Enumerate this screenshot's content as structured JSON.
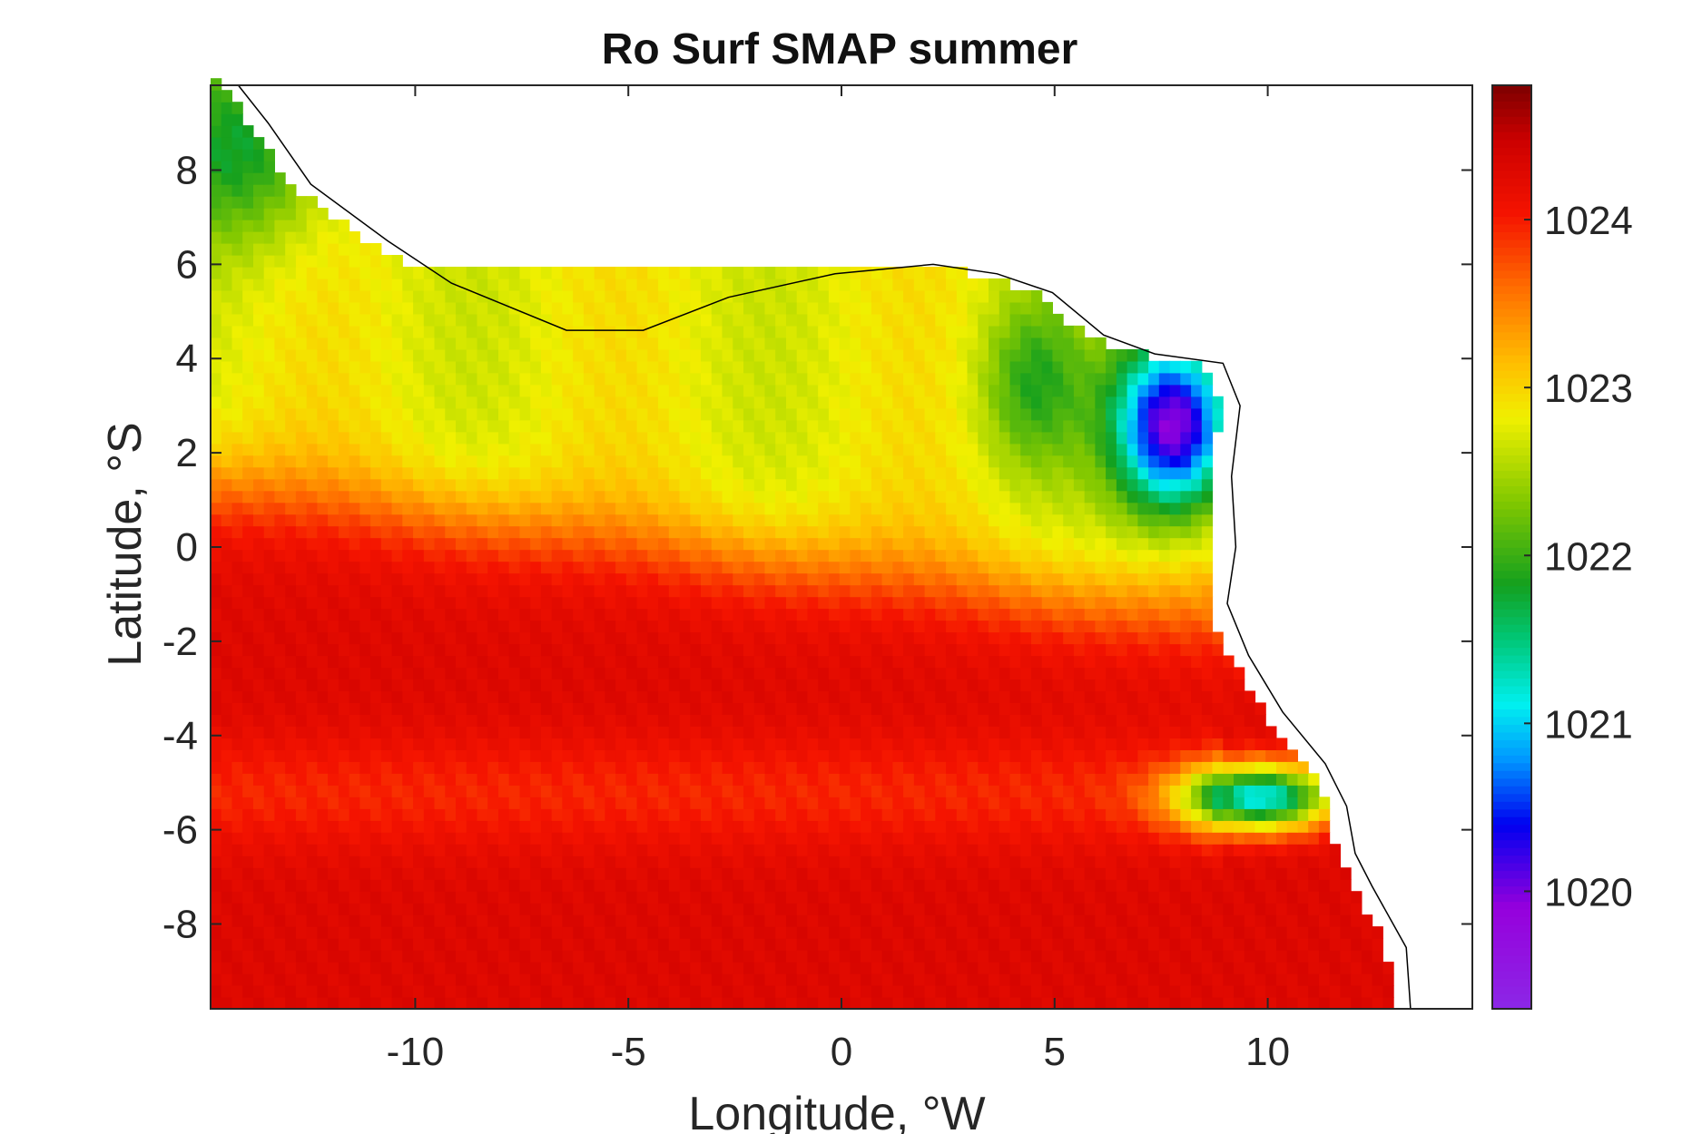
{
  "chart_data": {
    "type": "heatmap",
    "title": "Ro Surf SMAP summer",
    "xlabel": "Longitude, °W",
    "ylabel": "Latitude, °S",
    "xlim": [
      -14.8,
      14.8
    ],
    "ylim": [
      -9.8,
      9.8
    ],
    "xticks": [
      -10,
      -5,
      0,
      5,
      10
    ],
    "xtick_labels": [
      "-10",
      "-5",
      "0",
      "5",
      "10"
    ],
    "yticks": [
      8,
      6,
      4,
      2,
      0,
      -2,
      -4,
      -6,
      -8
    ],
    "ytick_labels": [
      "8",
      "6",
      "4",
      "2",
      "0",
      "-2",
      "-4",
      "-6",
      "-8"
    ],
    "colorbar": {
      "range": [
        1019.3,
        1024.8
      ],
      "ticks": [
        1024,
        1023,
        1022,
        1021,
        1020
      ],
      "tick_labels": [
        "1024",
        "1023",
        "1022",
        "1021",
        "1020"
      ],
      "colormap": "jet-like (purple to dark red)"
    },
    "grid": false,
    "field_description_values": {
      "south_band_max": 1024.5,
      "north_plume_min": 1019.8,
      "equatorial_front_lat": 1,
      "congo_plume_center": [
        9.5,
        -5.2
      ]
    },
    "land_color": "#ffffff",
    "coastline_color": "#000000"
  }
}
